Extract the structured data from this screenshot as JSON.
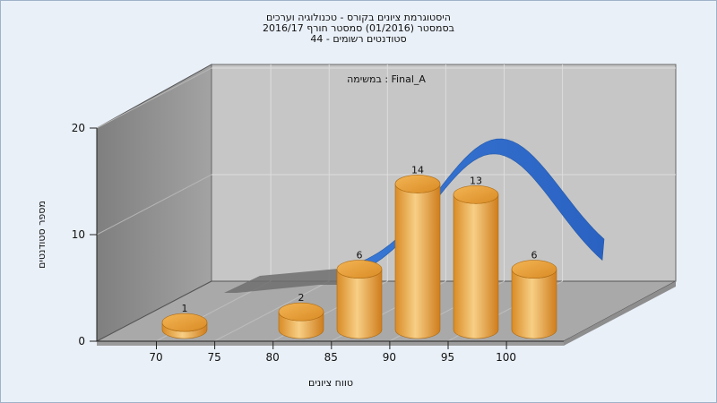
{
  "chart_data": {
    "type": "bar",
    "title_lines": [
      "היסטוגרמת ציונים בקורס - טכנולוגיה וערכים",
      "בסמסטר  (01/2016)  סמסטר חורף 2016/17",
      "סטודנטים רשומים - 44"
    ],
    "annotation": "במשימה : Final_A",
    "xlabel": "טווח ציונים",
    "ylabel": "מספר סטודנטים",
    "x_ticks": [
      "70",
      "75",
      "80",
      "85",
      "90",
      "95",
      "100"
    ],
    "y_ticks": [
      "0",
      "10",
      "20"
    ],
    "ylim": [
      0,
      20
    ],
    "bars": [
      {
        "label": "1",
        "value": 1
      },
      {
        "label": "2",
        "value": 2
      },
      {
        "label": "6",
        "value": 6
      },
      {
        "label": "14",
        "value": 14
      },
      {
        "label": "13",
        "value": 13
      },
      {
        "label": "6",
        "value": 6
      }
    ],
    "curve": {
      "type": "normal-distribution",
      "color": "#2f6fcf"
    },
    "colors": {
      "bar_light": "#f5c77a",
      "bar_dark": "#d98b25",
      "back_wall": "#c6c6c6",
      "side_wall": "#8a8a8a",
      "floor": "#a9a9a9"
    },
    "grid": true
  }
}
